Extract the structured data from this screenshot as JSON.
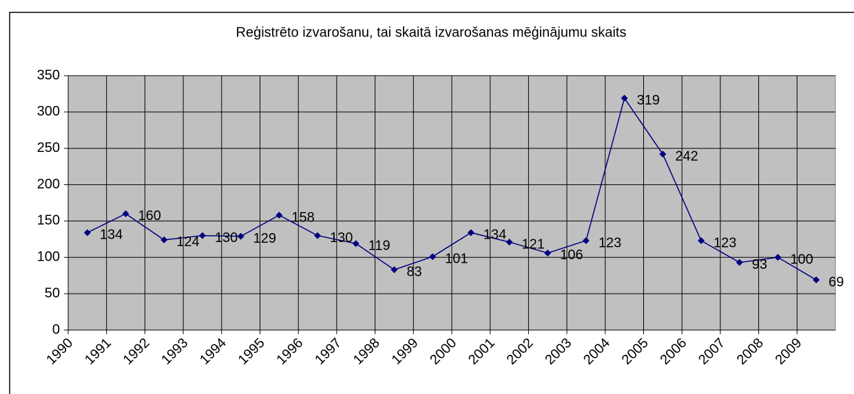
{
  "chart_data": {
    "type": "line",
    "title": "Reģistrēto izvarošanu, tai skaitā izvarošanas mēģinājumu skaits",
    "categories": [
      "1990",
      "1991",
      "1992",
      "1993",
      "1994",
      "1995",
      "1996",
      "1997",
      "1998",
      "1999",
      "2000",
      "2001",
      "2002",
      "2003",
      "2004",
      "2005",
      "2006",
      "2007",
      "2008",
      "2009"
    ],
    "values": [
      134,
      160,
      124,
      130,
      129,
      158,
      130,
      119,
      83,
      101,
      134,
      121,
      106,
      123,
      319,
      242,
      123,
      93,
      100,
      69
    ],
    "color": "#000080",
    "ylim": [
      0,
      350
    ],
    "yticks": [
      0,
      50,
      100,
      150,
      200,
      250,
      300,
      350
    ],
    "grid": true
  }
}
